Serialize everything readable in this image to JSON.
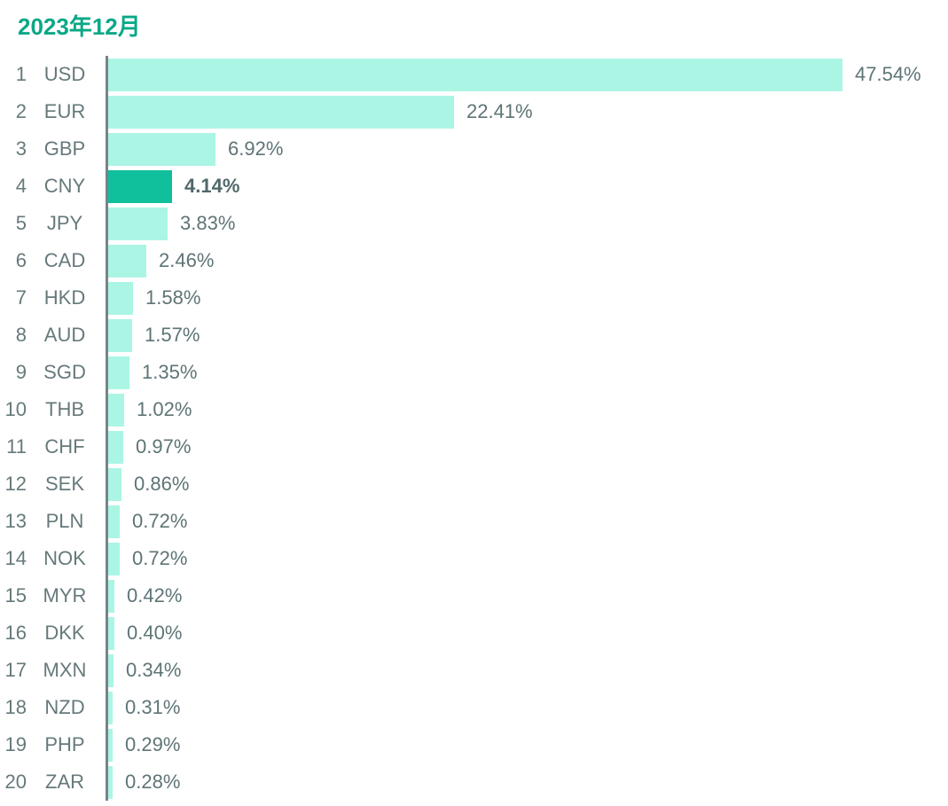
{
  "title": "2023年12月",
  "colors": {
    "title": "#0aa886",
    "bar": "#abf5e4",
    "bar_highlight": "#10bf9c",
    "label_text": "#66797b",
    "value_text": "#5e7476",
    "highlight_value_text": "#51686a",
    "axis_line": "#76848a",
    "background": "#ffffff"
  },
  "chart_data": {
    "type": "bar",
    "orientation": "horizontal",
    "title": "2023年12月",
    "xlabel": "",
    "ylabel": "",
    "unit": "%",
    "xlim": [
      0,
      50
    ],
    "grid": false,
    "legend": false,
    "categories": [
      "USD",
      "EUR",
      "GBP",
      "CNY",
      "JPY",
      "CAD",
      "HKD",
      "AUD",
      "SGD",
      "THB",
      "CHF",
      "SEK",
      "PLN",
      "NOK",
      "MYR",
      "DKK",
      "MXN",
      "NZD",
      "PHP",
      "ZAR"
    ],
    "values": [
      47.54,
      22.41,
      6.92,
      4.14,
      3.83,
      2.46,
      1.58,
      1.57,
      1.35,
      1.02,
      0.97,
      0.86,
      0.72,
      0.72,
      0.42,
      0.4,
      0.34,
      0.31,
      0.29,
      0.28
    ],
    "items": [
      {
        "rank": "1",
        "currency": "USD",
        "value": 47.54,
        "label": "47.54%",
        "highlighted": false
      },
      {
        "rank": "2",
        "currency": "EUR",
        "value": 22.41,
        "label": "22.41%",
        "highlighted": false
      },
      {
        "rank": "3",
        "currency": "GBP",
        "value": 6.92,
        "label": "6.92%",
        "highlighted": false
      },
      {
        "rank": "4",
        "currency": "CNY",
        "value": 4.14,
        "label": "4.14%",
        "highlighted": true
      },
      {
        "rank": "5",
        "currency": "JPY",
        "value": 3.83,
        "label": "3.83%",
        "highlighted": false
      },
      {
        "rank": "6",
        "currency": "CAD",
        "value": 2.46,
        "label": "2.46%",
        "highlighted": false
      },
      {
        "rank": "7",
        "currency": "HKD",
        "value": 1.58,
        "label": "1.58%",
        "highlighted": false
      },
      {
        "rank": "8",
        "currency": "AUD",
        "value": 1.57,
        "label": "1.57%",
        "highlighted": false
      },
      {
        "rank": "9",
        "currency": "SGD",
        "value": 1.35,
        "label": "1.35%",
        "highlighted": false
      },
      {
        "rank": "10",
        "currency": "THB",
        "value": 1.02,
        "label": "1.02%",
        "highlighted": false
      },
      {
        "rank": "11",
        "currency": "CHF",
        "value": 0.97,
        "label": "0.97%",
        "highlighted": false
      },
      {
        "rank": "12",
        "currency": "SEK",
        "value": 0.86,
        "label": "0.86%",
        "highlighted": false
      },
      {
        "rank": "13",
        "currency": "PLN",
        "value": 0.72,
        "label": "0.72%",
        "highlighted": false
      },
      {
        "rank": "14",
        "currency": "NOK",
        "value": 0.72,
        "label": "0.72%",
        "highlighted": false
      },
      {
        "rank": "15",
        "currency": "MYR",
        "value": 0.42,
        "label": "0.42%",
        "highlighted": false
      },
      {
        "rank": "16",
        "currency": "DKK",
        "value": 0.4,
        "label": "0.40%",
        "highlighted": false
      },
      {
        "rank": "17",
        "currency": "MXN",
        "value": 0.34,
        "label": "0.34%",
        "highlighted": false
      },
      {
        "rank": "18",
        "currency": "NZD",
        "value": 0.31,
        "label": "0.31%",
        "highlighted": false
      },
      {
        "rank": "19",
        "currency": "PHP",
        "value": 0.29,
        "label": "0.29%",
        "highlighted": false
      },
      {
        "rank": "20",
        "currency": "ZAR",
        "value": 0.28,
        "label": "0.28%",
        "highlighted": false
      }
    ]
  }
}
